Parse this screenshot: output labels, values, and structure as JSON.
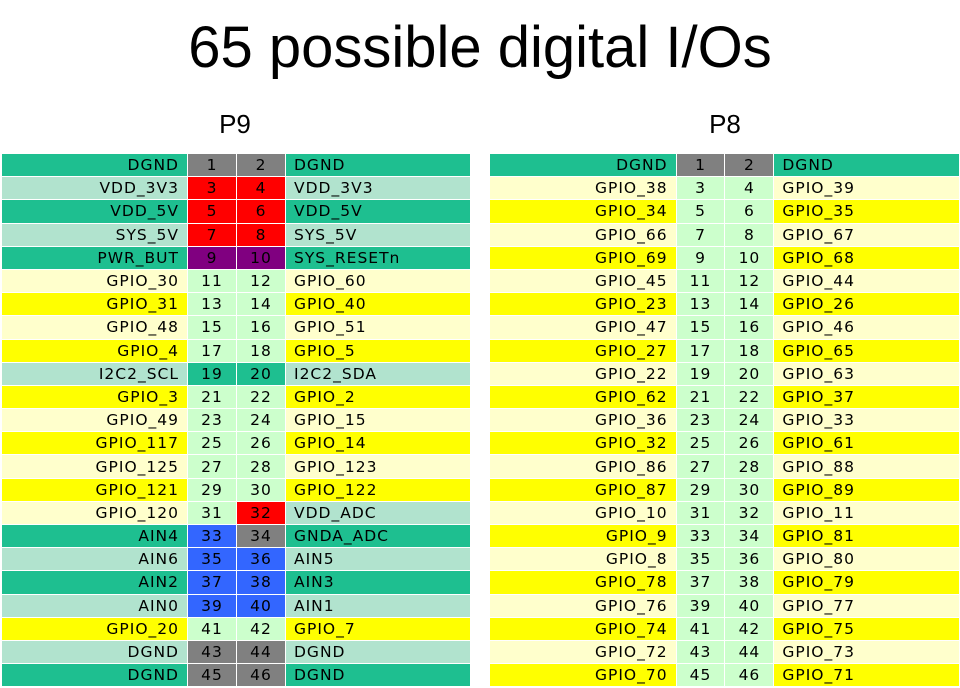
{
  "title": "65 possible digital I/Os",
  "colors": {
    "teal": "#1ebf90",
    "mint": "#b1e3ce",
    "yellow": "#ffff00",
    "cream": "#ffffcc",
    "gray": "#808080",
    "red": "#ff0000",
    "purple": "#800080",
    "blue": "#3366ff",
    "pale_green": "#ccffcc"
  },
  "headers": [
    {
      "label": "P9",
      "rows": [
        {
          "left": "DGND",
          "n1": "1",
          "n2": "2",
          "right": "DGND",
          "c": [
            "teal",
            "gray",
            "gray",
            "teal"
          ]
        },
        {
          "left": "VDD_3V3",
          "n1": "3",
          "n2": "4",
          "right": "VDD_3V3",
          "c": [
            "mint",
            "red",
            "red",
            "mint"
          ]
        },
        {
          "left": "VDD_5V",
          "n1": "5",
          "n2": "6",
          "right": "VDD_5V",
          "c": [
            "teal",
            "red",
            "red",
            "teal"
          ]
        },
        {
          "left": "SYS_5V",
          "n1": "7",
          "n2": "8",
          "right": "SYS_5V",
          "c": [
            "mint",
            "red",
            "red",
            "mint"
          ]
        },
        {
          "left": "PWR_BUT",
          "n1": "9",
          "n2": "10",
          "right": "SYS_RESETn",
          "c": [
            "teal",
            "purple",
            "purple",
            "teal"
          ]
        },
        {
          "left": "GPIO_30",
          "n1": "11",
          "n2": "12",
          "right": "GPIO_60",
          "c": [
            "cream",
            "pale_green",
            "pale_green",
            "cream"
          ]
        },
        {
          "left": "GPIO_31",
          "n1": "13",
          "n2": "14",
          "right": "GPIO_40",
          "c": [
            "yellow",
            "pale_green",
            "pale_green",
            "yellow"
          ]
        },
        {
          "left": "GPIO_48",
          "n1": "15",
          "n2": "16",
          "right": "GPIO_51",
          "c": [
            "cream",
            "pale_green",
            "pale_green",
            "cream"
          ]
        },
        {
          "left": "GPIO_4",
          "n1": "17",
          "n2": "18",
          "right": "GPIO_5",
          "c": [
            "yellow",
            "pale_green",
            "pale_green",
            "yellow"
          ]
        },
        {
          "left": "I2C2_SCL",
          "n1": "19",
          "n2": "20",
          "right": "I2C2_SDA",
          "c": [
            "mint",
            "teal",
            "teal",
            "mint"
          ]
        },
        {
          "left": "GPIO_3",
          "n1": "21",
          "n2": "22",
          "right": "GPIO_2",
          "c": [
            "yellow",
            "pale_green",
            "pale_green",
            "yellow"
          ]
        },
        {
          "left": "GPIO_49",
          "n1": "23",
          "n2": "24",
          "right": "GPIO_15",
          "c": [
            "cream",
            "pale_green",
            "pale_green",
            "cream"
          ]
        },
        {
          "left": "GPIO_117",
          "n1": "25",
          "n2": "26",
          "right": "GPIO_14",
          "c": [
            "yellow",
            "pale_green",
            "pale_green",
            "yellow"
          ]
        },
        {
          "left": "GPIO_125",
          "n1": "27",
          "n2": "28",
          "right": "GPIO_123",
          "c": [
            "cream",
            "pale_green",
            "pale_green",
            "cream"
          ]
        },
        {
          "left": "GPIO_121",
          "n1": "29",
          "n2": "30",
          "right": "GPIO_122",
          "c": [
            "yellow",
            "pale_green",
            "pale_green",
            "yellow"
          ]
        },
        {
          "left": "GPIO_120",
          "n1": "31",
          "n2": "32",
          "right": "VDD_ADC",
          "c": [
            "cream",
            "pale_green",
            "red",
            "mint"
          ]
        },
        {
          "left": "AIN4",
          "n1": "33",
          "n2": "34",
          "right": "GNDA_ADC",
          "c": [
            "teal",
            "blue",
            "gray",
            "teal"
          ]
        },
        {
          "left": "AIN6",
          "n1": "35",
          "n2": "36",
          "right": "AIN5",
          "c": [
            "mint",
            "blue",
            "blue",
            "mint"
          ]
        },
        {
          "left": "AIN2",
          "n1": "37",
          "n2": "38",
          "right": "AIN3",
          "c": [
            "teal",
            "blue",
            "blue",
            "teal"
          ]
        },
        {
          "left": "AIN0",
          "n1": "39",
          "n2": "40",
          "right": "AIN1",
          "c": [
            "mint",
            "blue",
            "blue",
            "mint"
          ]
        },
        {
          "left": "GPIO_20",
          "n1": "41",
          "n2": "42",
          "right": "GPIO_7",
          "c": [
            "yellow",
            "pale_green",
            "pale_green",
            "yellow"
          ]
        },
        {
          "left": "DGND",
          "n1": "43",
          "n2": "44",
          "right": "DGND",
          "c": [
            "mint",
            "gray",
            "gray",
            "mint"
          ]
        },
        {
          "left": "DGND",
          "n1": "45",
          "n2": "46",
          "right": "DGND",
          "c": [
            "teal",
            "gray",
            "gray",
            "teal"
          ]
        }
      ]
    },
    {
      "label": "P8",
      "rows": [
        {
          "left": "DGND",
          "n1": "1",
          "n2": "2",
          "right": "DGND",
          "c": [
            "teal",
            "gray",
            "gray",
            "teal"
          ]
        },
        {
          "left": "GPIO_38",
          "n1": "3",
          "n2": "4",
          "right": "GPIO_39",
          "c": [
            "cream",
            "pale_green",
            "pale_green",
            "cream"
          ]
        },
        {
          "left": "GPIO_34",
          "n1": "5",
          "n2": "6",
          "right": "GPIO_35",
          "c": [
            "yellow",
            "pale_green",
            "pale_green",
            "yellow"
          ]
        },
        {
          "left": "GPIO_66",
          "n1": "7",
          "n2": "8",
          "right": "GPIO_67",
          "c": [
            "cream",
            "pale_green",
            "pale_green",
            "cream"
          ]
        },
        {
          "left": "GPIO_69",
          "n1": "9",
          "n2": "10",
          "right": "GPIO_68",
          "c": [
            "yellow",
            "pale_green",
            "pale_green",
            "yellow"
          ]
        },
        {
          "left": "GPIO_45",
          "n1": "11",
          "n2": "12",
          "right": "GPIO_44",
          "c": [
            "cream",
            "pale_green",
            "pale_green",
            "cream"
          ]
        },
        {
          "left": "GPIO_23",
          "n1": "13",
          "n2": "14",
          "right": "GPIO_26",
          "c": [
            "yellow",
            "pale_green",
            "pale_green",
            "yellow"
          ]
        },
        {
          "left": "GPIO_47",
          "n1": "15",
          "n2": "16",
          "right": "GPIO_46",
          "c": [
            "cream",
            "pale_green",
            "pale_green",
            "cream"
          ]
        },
        {
          "left": "GPIO_27",
          "n1": "17",
          "n2": "18",
          "right": "GPIO_65",
          "c": [
            "yellow",
            "pale_green",
            "pale_green",
            "yellow"
          ]
        },
        {
          "left": "GPIO_22",
          "n1": "19",
          "n2": "20",
          "right": "GPIO_63",
          "c": [
            "cream",
            "pale_green",
            "pale_green",
            "cream"
          ]
        },
        {
          "left": "GPIO_62",
          "n1": "21",
          "n2": "22",
          "right": "GPIO_37",
          "c": [
            "yellow",
            "pale_green",
            "pale_green",
            "yellow"
          ]
        },
        {
          "left": "GPIO_36",
          "n1": "23",
          "n2": "24",
          "right": "GPIO_33",
          "c": [
            "cream",
            "pale_green",
            "pale_green",
            "cream"
          ]
        },
        {
          "left": "GPIO_32",
          "n1": "25",
          "n2": "26",
          "right": "GPIO_61",
          "c": [
            "yellow",
            "pale_green",
            "pale_green",
            "yellow"
          ]
        },
        {
          "left": "GPIO_86",
          "n1": "27",
          "n2": "28",
          "right": "GPIO_88",
          "c": [
            "cream",
            "pale_green",
            "pale_green",
            "cream"
          ]
        },
        {
          "left": "GPIO_87",
          "n1": "29",
          "n2": "30",
          "right": "GPIO_89",
          "c": [
            "yellow",
            "pale_green",
            "pale_green",
            "yellow"
          ]
        },
        {
          "left": "GPIO_10",
          "n1": "31",
          "n2": "32",
          "right": "GPIO_11",
          "c": [
            "cream",
            "pale_green",
            "pale_green",
            "cream"
          ]
        },
        {
          "left": "GPIO_9",
          "n1": "33",
          "n2": "34",
          "right": "GPIO_81",
          "c": [
            "yellow",
            "pale_green",
            "pale_green",
            "yellow"
          ]
        },
        {
          "left": "GPIO_8",
          "n1": "35",
          "n2": "36",
          "right": "GPIO_80",
          "c": [
            "cream",
            "pale_green",
            "pale_green",
            "cream"
          ]
        },
        {
          "left": "GPIO_78",
          "n1": "37",
          "n2": "38",
          "right": "GPIO_79",
          "c": [
            "yellow",
            "pale_green",
            "pale_green",
            "yellow"
          ]
        },
        {
          "left": "GPIO_76",
          "n1": "39",
          "n2": "40",
          "right": "GPIO_77",
          "c": [
            "cream",
            "pale_green",
            "pale_green",
            "cream"
          ]
        },
        {
          "left": "GPIO_74",
          "n1": "41",
          "n2": "42",
          "right": "GPIO_75",
          "c": [
            "yellow",
            "pale_green",
            "pale_green",
            "yellow"
          ]
        },
        {
          "left": "GPIO_72",
          "n1": "43",
          "n2": "44",
          "right": "GPIO_73",
          "c": [
            "cream",
            "pale_green",
            "pale_green",
            "cream"
          ]
        },
        {
          "left": "GPIO_70",
          "n1": "45",
          "n2": "46",
          "right": "GPIO_71",
          "c": [
            "yellow",
            "pale_green",
            "pale_green",
            "yellow"
          ]
        }
      ]
    }
  ]
}
